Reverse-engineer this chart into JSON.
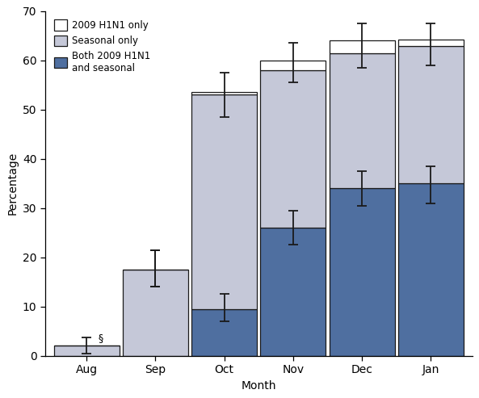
{
  "months": [
    "Aug",
    "Sep",
    "Oct",
    "Nov",
    "Dec",
    "Jan"
  ],
  "both_h1n1_seasonal": [
    0.0,
    0.0,
    9.5,
    26.0,
    34.0,
    35.0
  ],
  "seasonal_only": [
    2.1,
    17.5,
    43.5,
    32.0,
    27.5,
    28.0
  ],
  "h1n1_only": [
    0.0,
    0.0,
    0.5,
    2.0,
    2.5,
    1.3
  ],
  "total_ci_lower": [
    0.5,
    14.0,
    48.5,
    55.5,
    58.5,
    59.0
  ],
  "total_ci_upper": [
    3.7,
    21.5,
    57.5,
    63.5,
    67.5,
    67.5
  ],
  "both_ci_lower": [
    0.0,
    0.0,
    7.0,
    22.5,
    30.5,
    31.0
  ],
  "both_ci_upper": [
    0.0,
    0.0,
    12.5,
    29.5,
    37.5,
    38.5
  ],
  "seasonal_ci_lower": [
    0.0,
    14.0,
    0.0,
    0.0,
    0.0,
    0.0
  ],
  "seasonal_ci_upper": [
    0.0,
    21.5,
    0.0,
    0.0,
    0.0,
    0.0
  ],
  "color_both": "#4f6fa0",
  "color_seasonal": "#c5c8d8",
  "color_h1n1": "#ffffff",
  "bar_edge_color": "#1a1a1a",
  "error_bar_color": "#1a1a1a",
  "ylim": [
    0,
    70
  ],
  "yticks": [
    0,
    10,
    20,
    30,
    40,
    50,
    60,
    70
  ],
  "xlabel": "Month",
  "ylabel": "Percentage",
  "bar_width": 0.95,
  "legend_labels": [
    "2009 H1N1 only",
    "Seasonal only",
    "Both 2009 H1N1\nand seasonal"
  ],
  "legend_colors": [
    "#ffffff",
    "#c5c8d8",
    "#4f6fa0"
  ],
  "annotation_month_idx": 0,
  "annotation_text": "§",
  "figsize": [
    5.93,
    4.93
  ],
  "dpi": 100
}
